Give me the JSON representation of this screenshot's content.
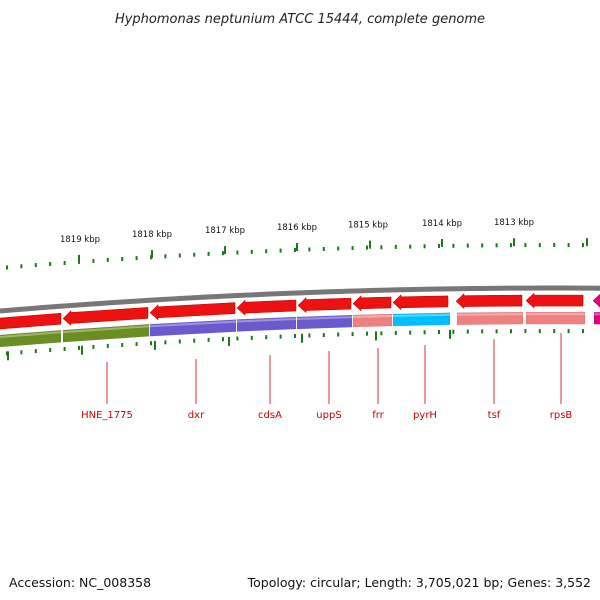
{
  "title": "Hyphomonas neptunium ATCC 15444, complete genome",
  "footer": {
    "accession": "Accession: NC_008358",
    "summary": "Topology: circular; Length: 3,705,021 bp; Genes: 3,552"
  },
  "ruler_labels": [
    "1819 kbp",
    "1818 kbp",
    "1817 kbp",
    "1816 kbp",
    "1815 kbp",
    "1814 kbp",
    "1813 kbp"
  ],
  "gene_labels": [
    "HNE_1775",
    "dxr",
    "cdsA",
    "uppS",
    "frr",
    "pyrH",
    "tsf",
    "rpsB"
  ],
  "colors": {
    "backbone": "#777777",
    "cds_arrow": "#ee1111",
    "olive": "#6b8e23",
    "purple": "#6a5acd",
    "pink": "#f08080",
    "cyan": "#00bfff",
    "magenta": "#dd0088",
    "tick": "#1a7a1a",
    "label": "#cc0000"
  }
}
